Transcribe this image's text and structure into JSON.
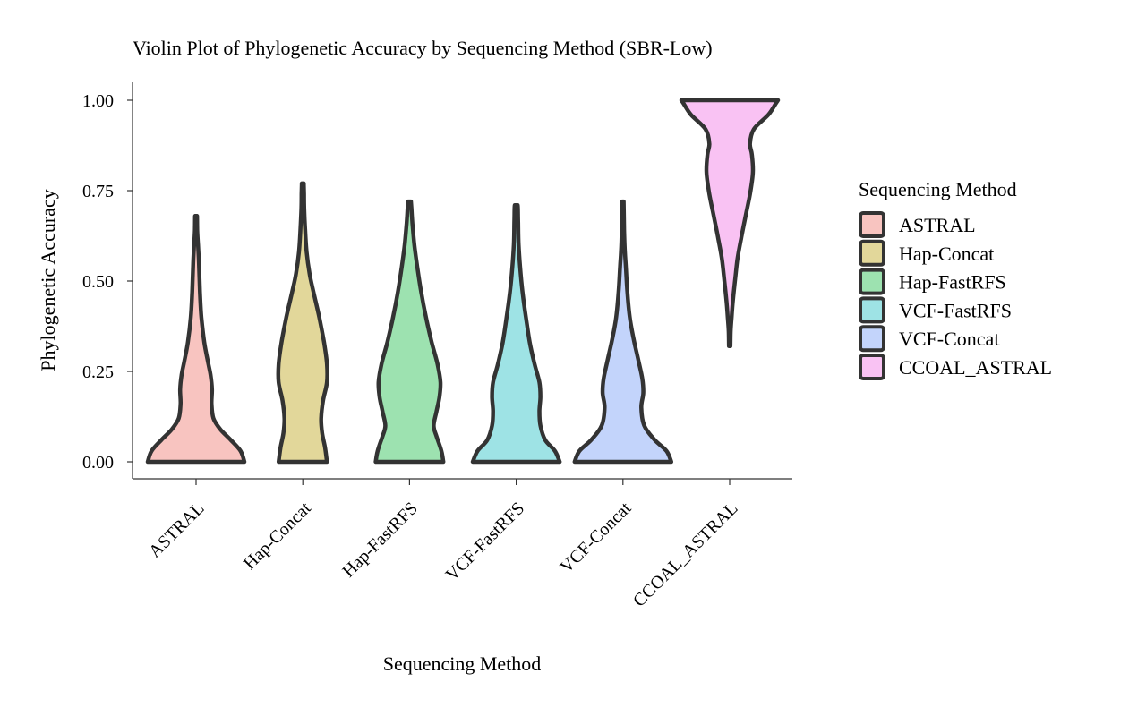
{
  "chart_data": {
    "type": "violin",
    "title": "Violin Plot of Phylogenetic Accuracy by Sequencing Method (SBR-Low)",
    "xlabel": "Sequencing Method",
    "ylabel": "Phylogenetic Accuracy",
    "ylim": [
      -0.05,
      1.05
    ],
    "yticks": [
      "0.00",
      "0.25",
      "0.50",
      "0.75",
      "1.00"
    ],
    "ytick_values": [
      0,
      0.25,
      0.5,
      0.75,
      1.0
    ],
    "grid": false,
    "legend": {
      "title": "Sequencing Method",
      "placement": "right"
    },
    "categories": [
      "ASTRAL",
      "Hap-Concat",
      "Hap-FastRFS",
      "VCF-FastRFS",
      "VCF-Concat",
      "CCOAL_ASTRAL"
    ],
    "series": [
      {
        "name": "ASTRAL",
        "color": "#F8C4C0",
        "profile": [
          [
            0.0,
            1.0
          ],
          [
            0.03,
            0.92
          ],
          [
            0.06,
            0.72
          ],
          [
            0.09,
            0.5
          ],
          [
            0.12,
            0.36
          ],
          [
            0.16,
            0.32
          ],
          [
            0.2,
            0.33
          ],
          [
            0.24,
            0.3
          ],
          [
            0.28,
            0.24
          ],
          [
            0.33,
            0.17
          ],
          [
            0.4,
            0.11
          ],
          [
            0.47,
            0.08
          ],
          [
            0.55,
            0.06
          ],
          [
            0.6,
            0.04
          ],
          [
            0.64,
            0.025
          ],
          [
            0.68,
            0.02
          ]
        ]
      },
      {
        "name": "Hap-Concat",
        "color": "#E2D79A",
        "profile": [
          [
            0.0,
            0.5
          ],
          [
            0.04,
            0.46
          ],
          [
            0.08,
            0.4
          ],
          [
            0.12,
            0.38
          ],
          [
            0.17,
            0.42
          ],
          [
            0.22,
            0.5
          ],
          [
            0.27,
            0.5
          ],
          [
            0.33,
            0.44
          ],
          [
            0.4,
            0.34
          ],
          [
            0.47,
            0.22
          ],
          [
            0.52,
            0.14
          ],
          [
            0.58,
            0.08
          ],
          [
            0.64,
            0.05
          ],
          [
            0.7,
            0.03
          ],
          [
            0.74,
            0.025
          ],
          [
            0.77,
            0.02
          ]
        ]
      },
      {
        "name": "Hap-FastRFS",
        "color": "#9DE2B0",
        "profile": [
          [
            0.0,
            0.7
          ],
          [
            0.03,
            0.66
          ],
          [
            0.07,
            0.56
          ],
          [
            0.1,
            0.5
          ],
          [
            0.14,
            0.56
          ],
          [
            0.18,
            0.62
          ],
          [
            0.22,
            0.64
          ],
          [
            0.27,
            0.58
          ],
          [
            0.33,
            0.46
          ],
          [
            0.4,
            0.34
          ],
          [
            0.47,
            0.24
          ],
          [
            0.54,
            0.16
          ],
          [
            0.6,
            0.1
          ],
          [
            0.66,
            0.06
          ],
          [
            0.7,
            0.04
          ],
          [
            0.72,
            0.03
          ]
        ]
      },
      {
        "name": "VCF-FastRFS",
        "color": "#9EE3E5",
        "profile": [
          [
            0.0,
            0.9
          ],
          [
            0.03,
            0.8
          ],
          [
            0.06,
            0.6
          ],
          [
            0.1,
            0.5
          ],
          [
            0.14,
            0.48
          ],
          [
            0.18,
            0.5
          ],
          [
            0.22,
            0.48
          ],
          [
            0.27,
            0.38
          ],
          [
            0.33,
            0.28
          ],
          [
            0.4,
            0.2
          ],
          [
            0.47,
            0.13
          ],
          [
            0.54,
            0.08
          ],
          [
            0.6,
            0.05
          ],
          [
            0.66,
            0.04
          ],
          [
            0.7,
            0.035
          ],
          [
            0.71,
            0.03
          ]
        ]
      },
      {
        "name": "VCF-Concat",
        "color": "#C3D4FB",
        "profile": [
          [
            0.0,
            1.0
          ],
          [
            0.03,
            0.9
          ],
          [
            0.06,
            0.66
          ],
          [
            0.1,
            0.44
          ],
          [
            0.15,
            0.38
          ],
          [
            0.19,
            0.42
          ],
          [
            0.23,
            0.4
          ],
          [
            0.28,
            0.32
          ],
          [
            0.34,
            0.22
          ],
          [
            0.4,
            0.14
          ],
          [
            0.47,
            0.09
          ],
          [
            0.54,
            0.06
          ],
          [
            0.58,
            0.04
          ],
          [
            0.64,
            0.025
          ],
          [
            0.69,
            0.018
          ],
          [
            0.72,
            0.015
          ]
        ]
      },
      {
        "name": "CCOAL_ASTRAL",
        "color": "#F9C2F3",
        "profile": [
          [
            0.32,
            0.015
          ],
          [
            0.36,
            0.02
          ],
          [
            0.4,
            0.04
          ],
          [
            0.45,
            0.07
          ],
          [
            0.5,
            0.11
          ],
          [
            0.56,
            0.16
          ],
          [
            0.62,
            0.24
          ],
          [
            0.68,
            0.33
          ],
          [
            0.74,
            0.42
          ],
          [
            0.8,
            0.48
          ],
          [
            0.85,
            0.46
          ],
          [
            0.88,
            0.42
          ],
          [
            0.92,
            0.5
          ],
          [
            0.96,
            0.8
          ],
          [
            0.99,
            0.95
          ],
          [
            1.0,
            1.0
          ]
        ]
      }
    ]
  }
}
